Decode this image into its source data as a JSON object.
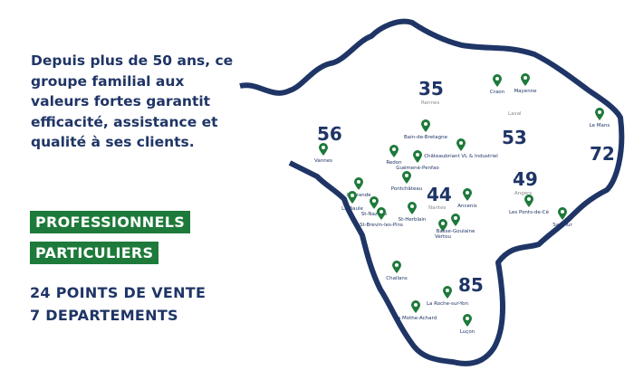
{
  "intro": "Depuis plus de 50 ans, ce groupe familial aux valeurs fortes garantit efficacité, assistance et qualité à ses clients.",
  "badges": [
    "PROFESSIONNELS",
    "PARTICULIERS"
  ],
  "stats": [
    "24 POINTS DE VENTE",
    "7 DEPARTEMENTS"
  ],
  "colors": {
    "navy": "#1f3566",
    "green": "#1e7a3a"
  },
  "departments": [
    {
      "num": "35",
      "city": "Rennes"
    },
    {
      "num": "56"
    },
    {
      "num": "53",
      "city": "Laval"
    },
    {
      "num": "72"
    },
    {
      "num": "44",
      "city": "Nantes"
    },
    {
      "num": "49",
      "city": "Angers"
    },
    {
      "num": "85"
    }
  ],
  "locations": [
    "Craon",
    "Mayenne",
    "Le Mans",
    "Bain-de-Bretagne",
    "Châteaubriant VL & Industriel",
    "Vannes",
    "Redon",
    "Guémené-Penfao",
    "Pontchâteau",
    "Guérande",
    "La Baule",
    "St-Nazaire",
    "St-Brevin-les-Pins",
    "St-Herblain",
    "Ancenis",
    "Vertou",
    "Basse-Goulaine",
    "Les Ponts-de-Cé",
    "Saumur",
    "Challans",
    "La Roche-sur-Yon",
    "La Mothe-Achard",
    "Luçon"
  ]
}
